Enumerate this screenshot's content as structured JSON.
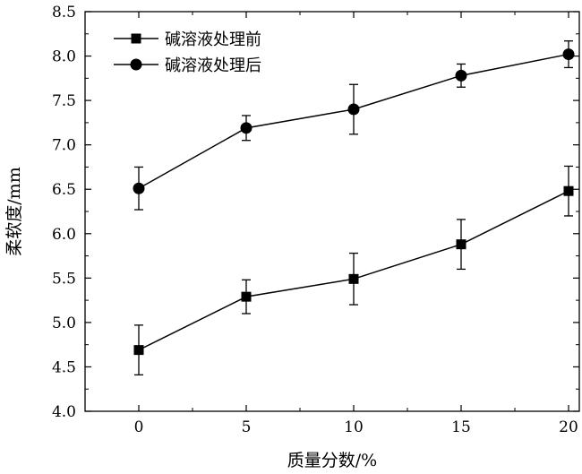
{
  "chart_data": {
    "type": "line",
    "title": "",
    "xlabel": "质量分数/%",
    "ylabel": "柔软度/mm",
    "x": [
      0,
      5,
      10,
      15,
      20
    ],
    "xlim": [
      -2.5,
      20.5
    ],
    "ylim": [
      4.0,
      8.5
    ],
    "xticks": [
      "0",
      "5",
      "10",
      "15",
      "20"
    ],
    "yticks": [
      "4.0",
      "4.5",
      "5.0",
      "5.5",
      "6.0",
      "6.5",
      "7.0",
      "7.5",
      "8.0",
      "8.5"
    ],
    "grid": false,
    "legend_position": "top-left",
    "series": [
      {
        "name": "碱溶液处理前",
        "marker": "square",
        "values": [
          4.69,
          5.29,
          5.49,
          5.88,
          6.48
        ],
        "error": [
          0.28,
          0.19,
          0.29,
          0.28,
          0.28
        ]
      },
      {
        "name": "碱溶液处理后",
        "marker": "circle",
        "values": [
          6.51,
          7.19,
          7.4,
          7.78,
          8.02
        ],
        "error": [
          0.24,
          0.14,
          0.28,
          0.13,
          0.15
        ]
      }
    ]
  }
}
